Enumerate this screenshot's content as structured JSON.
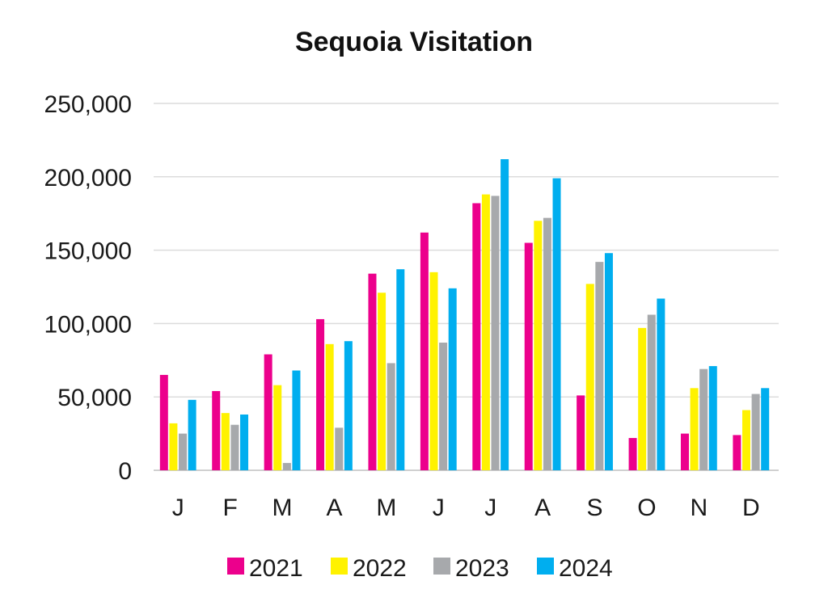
{
  "chart_data": {
    "type": "bar",
    "title": "Sequoia Visitation",
    "xlabel": "",
    "ylabel": "",
    "ylim": [
      0,
      250000
    ],
    "yticks": [
      0,
      50000,
      100000,
      150000,
      200000,
      250000
    ],
    "ytick_labels": [
      "0",
      "50,000",
      "100,000",
      "150,000",
      "200,000",
      "250,000"
    ],
    "grid": true,
    "legend_position": "bottom",
    "categories": [
      "J",
      "F",
      "M",
      "A",
      "M",
      "J",
      "J",
      "A",
      "S",
      "O",
      "N",
      "D"
    ],
    "series": [
      {
        "name": "2021",
        "color": "#EC008C",
        "values": [
          65000,
          54000,
          79000,
          103000,
          134000,
          162000,
          182000,
          155000,
          51000,
          22000,
          25000,
          24000
        ]
      },
      {
        "name": "2022",
        "color": "#FFF200",
        "values": [
          32000,
          39000,
          58000,
          86000,
          121000,
          135000,
          188000,
          170000,
          127000,
          97000,
          56000,
          41000
        ]
      },
      {
        "name": "2023",
        "color": "#A7A9AC",
        "values": [
          25000,
          31000,
          5000,
          29000,
          73000,
          87000,
          187000,
          172000,
          142000,
          106000,
          69000,
          52000
        ]
      },
      {
        "name": "2024",
        "color": "#00AEEF",
        "values": [
          48000,
          38000,
          68000,
          88000,
          137000,
          124000,
          212000,
          199000,
          148000,
          117000,
          71000,
          56000
        ]
      }
    ]
  }
}
